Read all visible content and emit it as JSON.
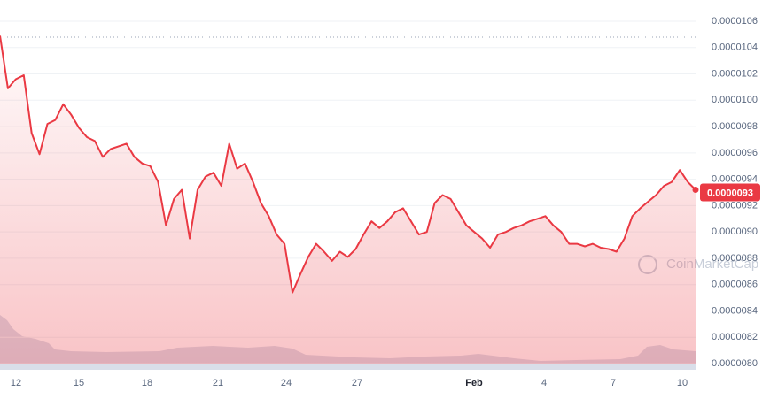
{
  "chart_data": {
    "type": "line",
    "series": [
      {
        "name": "Price",
        "color": "#ea3943",
        "values": [
          1.049e-05,
          1.009e-05,
          1.016e-05,
          1.019e-05,
          9.75e-06,
          9.59e-06,
          9.82e-06,
          9.85e-06,
          9.97e-06,
          9.89e-06,
          9.79e-06,
          9.72e-06,
          9.69e-06,
          9.57e-06,
          9.63e-06,
          9.65e-06,
          9.67e-06,
          9.57e-06,
          9.52e-06,
          9.5e-06,
          9.38e-06,
          9.05e-06,
          9.25e-06,
          9.32e-06,
          8.95e-06,
          9.32e-06,
          9.42e-06,
          9.45e-06,
          9.35e-06,
          9.67e-06,
          9.48e-06,
          9.52e-06,
          9.38e-06,
          9.22e-06,
          9.12e-06,
          8.98e-06,
          8.91e-06,
          8.54e-06,
          8.68e-06,
          8.81e-06,
          8.91e-06,
          8.85e-06,
          8.78e-06,
          8.85e-06,
          8.81e-06,
          8.87e-06,
          8.98e-06,
          9.08e-06,
          9.03e-06,
          9.08e-06,
          9.15e-06,
          9.18e-06,
          9.08e-06,
          8.98e-06,
          9e-06,
          9.22e-06,
          9.28e-06,
          9.25e-06,
          9.15e-06,
          9.05e-06,
          9e-06,
          8.95e-06,
          8.88e-06,
          8.98e-06,
          9e-06,
          9.03e-06,
          9.05e-06,
          9.08e-06,
          9.1e-06,
          9.12e-06,
          9.05e-06,
          9e-06,
          8.91e-06,
          8.91e-06,
          8.89e-06,
          8.91e-06,
          8.88e-06,
          8.87e-06,
          8.85e-06,
          8.95e-06,
          9.12e-06,
          9.18e-06,
          9.23e-06,
          9.28e-06,
          9.35e-06,
          9.38e-06,
          9.47e-06,
          9.38e-06,
          9.32e-06
        ]
      }
    ],
    "xtick_labels": [
      "12",
      "15",
      "18",
      "21",
      "24",
      "27",
      "Feb",
      "4",
      "7",
      "10"
    ],
    "ylim": [
      8e-06,
      1.06e-05
    ],
    "yticks": [
      {
        "value": 8e-06,
        "label": "0.0000080"
      },
      8.2e-06,
      8.4e-06,
      8.6e-06,
      8.8e-06,
      {
        "value": 9e-06,
        "label": "0.0000090"
      },
      9.2e-06,
      9.4e-06,
      9.6e-06,
      9.8e-06,
      {
        "value": 1e-05,
        "label": "0.0000100"
      },
      1.02e-05,
      1.04e-05,
      1.06e-05
    ],
    "current_price": 9.3e-06,
    "watermark": "CoinMarketCap",
    "grid": true
  }
}
